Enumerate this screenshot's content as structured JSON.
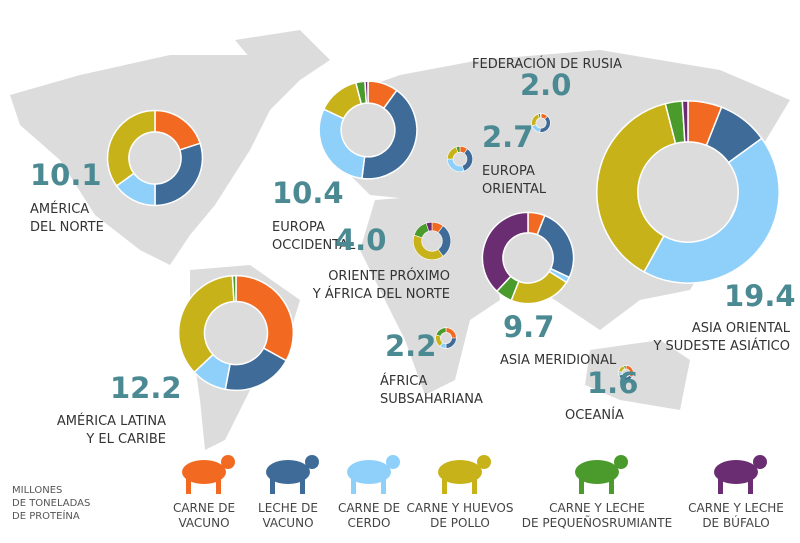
{
  "unit_note": [
    "MILLONES",
    "DE TONELADAS",
    "DE PROTEÍNA"
  ],
  "legend": [
    {
      "lines": [
        "CARNE DE",
        "VACUNO"
      ],
      "color": "#f26a21"
    },
    {
      "lines": [
        "LECHE DE",
        "VACUNO"
      ],
      "color": "#3e6b98"
    },
    {
      "lines": [
        "CARNE DE",
        "CERDO"
      ],
      "color": "#8fd0fb"
    },
    {
      "lines": [
        "CARNE Y HUEVOS",
        "DE POLLO"
      ],
      "color": "#c8b21a"
    },
    {
      "lines": [
        "CARNE Y LECHE",
        "DE PEQUEÑOSRUMIANTE"
      ],
      "color": "#4a9b2b"
    },
    {
      "lines": [
        "CARNE Y LECHE",
        "DE BÚFALO"
      ],
      "color": "#6b2d72"
    }
  ],
  "regions": [
    {
      "lines": [
        "AMÉRICA",
        "DEL NORTE"
      ],
      "total": {
        "value": 10.1,
        "label": "10.1"
      },
      "shares": [
        20,
        30,
        15,
        35,
        0,
        0
      ]
    },
    {
      "lines": [
        "EUROPA",
        "OCCIDENTAL"
      ],
      "total": {
        "value": 10.4,
        "label": "10.4"
      },
      "shares": [
        10,
        42,
        30,
        14,
        3,
        1
      ]
    },
    {
      "lines": [
        "FEDERACIÓN DE RUSIA"
      ],
      "total": {
        "value": 2.0,
        "label": "2.0"
      },
      "shares": [
        12,
        40,
        18,
        25,
        4,
        1
      ]
    },
    {
      "lines": [
        "EUROPA",
        "ORIENTAL"
      ],
      "total": {
        "value": 2.7,
        "label": "2.7"
      },
      "shares": [
        10,
        35,
        30,
        20,
        5,
        0
      ]
    },
    {
      "lines": [
        "ORIENTE PRÓXIMO",
        "Y ÁFRICA DEL NORTE"
      ],
      "total": {
        "value": 4.0,
        "label": "4.0"
      },
      "shares": [
        10,
        30,
        0,
        40,
        15,
        5
      ]
    },
    {
      "lines": [
        "ASIA MERIDIONAL"
      ],
      "total": {
        "value": 9.7,
        "label": "9.7"
      },
      "shares": [
        6,
        26,
        2,
        22,
        6,
        38
      ]
    },
    {
      "lines": [
        "ASIA ORIENTAL",
        "Y SUDESTE ASIÁTICO"
      ],
      "total": {
        "value": 19.4,
        "label": "19.4"
      },
      "shares": [
        6,
        9,
        43,
        38,
        3,
        1
      ]
    },
    {
      "lines": [
        "AMÉRICA LATINA",
        "Y EL CARIBE"
      ],
      "total": {
        "value": 12.2,
        "label": "12.2"
      },
      "shares": [
        33,
        20,
        10,
        36,
        1,
        0
      ]
    },
    {
      "lines": [
        "ÁFRICA",
        "SUBSAHARIANA"
      ],
      "total": {
        "value": 2.2,
        "label": "2.2"
      },
      "shares": [
        25,
        25,
        10,
        20,
        20,
        0
      ]
    },
    {
      "lines": [
        "OCEANÍA"
      ],
      "total": {
        "value": 1.6,
        "label": "1.6"
      },
      "shares": [
        35,
        35,
        8,
        17,
        5,
        0
      ]
    }
  ]
}
